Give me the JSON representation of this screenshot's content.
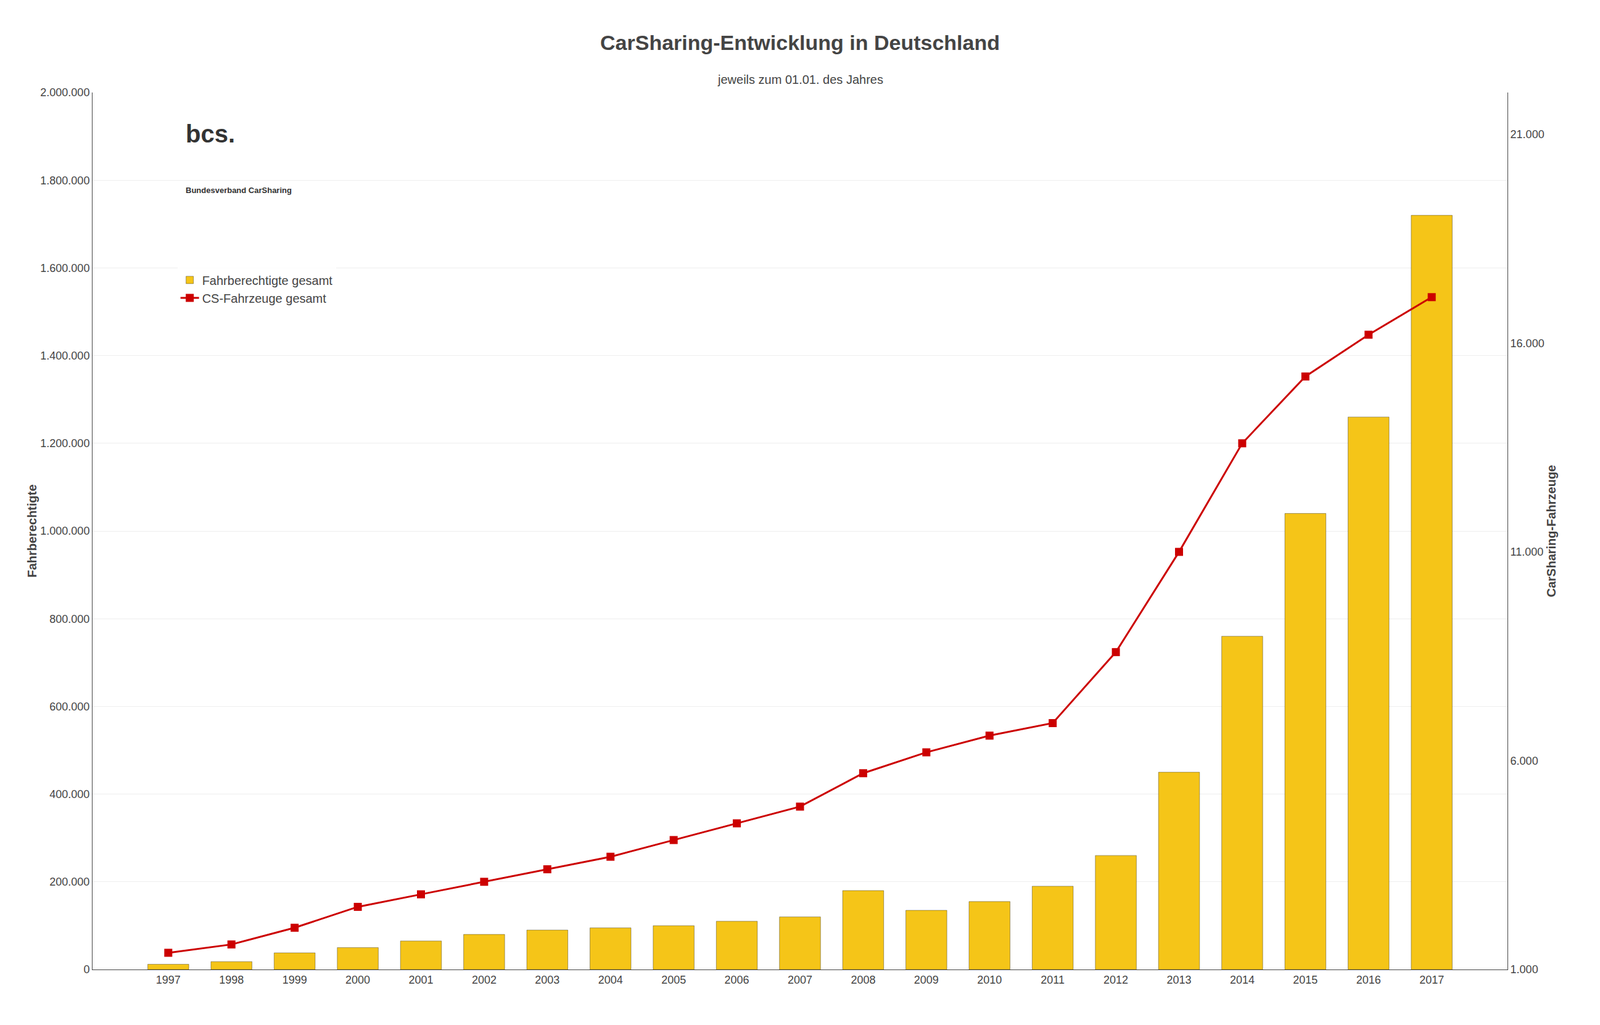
{
  "chart_data": {
    "type": "bar",
    "title": "CarSharing-Entwicklung in Deutschland",
    "subtitle": "jeweils zum 01.01. des Jahres",
    "ylabel": "Fahrberechtigte",
    "y2label": "CarSharing-Fahrzeuge",
    "categories": [
      "1997",
      "1998",
      "1999",
      "2000",
      "2001",
      "2002",
      "2003",
      "2004",
      "2005",
      "2006",
      "2007",
      "2008",
      "2009",
      "2010",
      "2011",
      "2012",
      "2013",
      "2014",
      "2015",
      "2016",
      "2017"
    ],
    "series": [
      {
        "name": "Fahrberechtigte gesamt",
        "type": "bar",
        "color": "#F5C518",
        "values": [
          12000,
          18000,
          38000,
          50000,
          65000,
          80000,
          90000,
          95000,
          100000,
          110000,
          120000,
          180000,
          135000,
          155000,
          190000,
          260000,
          450000,
          760000,
          1040000,
          1260000,
          1720000
        ]
      },
      {
        "name": "CS-Fahrzeuge gesamt",
        "type": "line",
        "axis": "y2",
        "color": "#CC0000",
        "marker": "square",
        "values": [
          1400,
          1600,
          2000,
          2500,
          2800,
          3100,
          3400,
          3700,
          4100,
          4500,
          4900,
          5700,
          6200,
          6600,
          6900,
          8600,
          11000,
          13600,
          15200,
          16200,
          17100
        ]
      }
    ],
    "ylim": [
      0,
      2000000
    ],
    "yticks": [
      0,
      {
        "value": 200000,
        "label": "200.000"
      },
      {
        "value": 400000,
        "label": "400.000"
      },
      {
        "value": 600000,
        "label": "600.000"
      },
      {
        "value": 800000,
        "label": "800.000"
      },
      {
        "value": 1000000,
        "label": "1.000.000"
      },
      {
        "value": 1200000,
        "label": "1.200.000"
      },
      {
        "value": 1400000,
        "label": "1.400.000"
      },
      {
        "value": 1600000,
        "label": "1.600.000"
      },
      {
        "value": 1800000,
        "label": "1.800.000"
      },
      {
        "value": 2000000,
        "label": "2.000.000"
      }
    ],
    "y2lim": [
      1000,
      22000
    ],
    "y2ticks": [
      {
        "value": 1000,
        "label": "1.000"
      },
      {
        "value": 6000,
        "label": "6.000"
      },
      {
        "value": 11000,
        "label": "11.000"
      },
      {
        "value": 16000,
        "label": "16.000"
      },
      {
        "value": 21000,
        "label": "21.000"
      }
    ],
    "grid": true,
    "legend": "upper left",
    "annotations": [
      {
        "text": "bcs."
      },
      {
        "text": "Bundesverband CarSharing"
      }
    ]
  }
}
